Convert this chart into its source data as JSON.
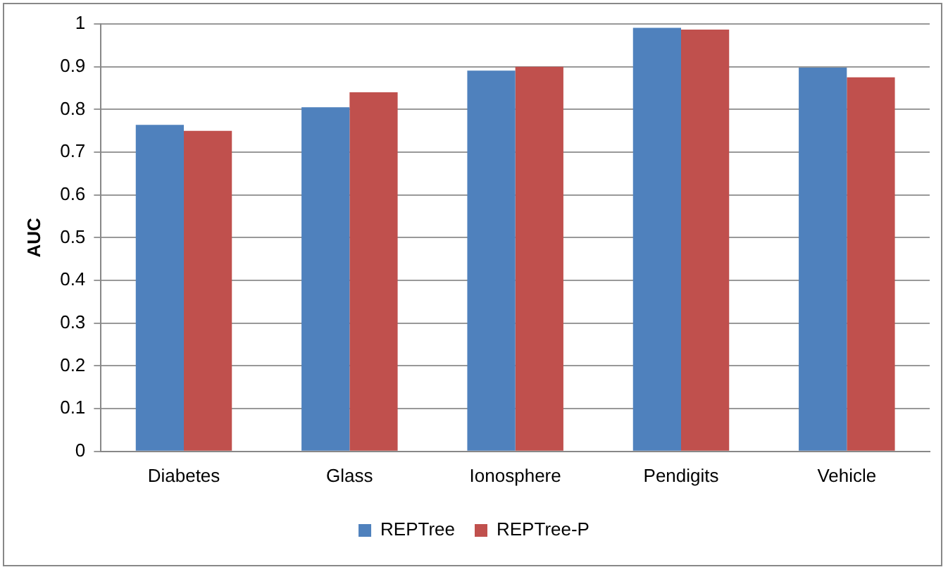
{
  "chart_data": {
    "type": "bar",
    "ylabel": "AUC",
    "categories": [
      "Diabetes",
      "Glass",
      "Ionosphere",
      "Pendigits",
      "Vehicle"
    ],
    "series": [
      {
        "name": "REPTree",
        "color": "#4f81bd",
        "values": [
          0.764,
          0.805,
          0.891,
          0.991,
          0.898
        ]
      },
      {
        "name": "REPTree-P",
        "color": "#c0504d",
        "values": [
          0.75,
          0.84,
          0.9,
          0.987,
          0.875
        ]
      }
    ],
    "ylim": [
      0,
      1
    ],
    "yticks": [
      0,
      0.1,
      0.2,
      0.3,
      0.4,
      0.5,
      0.6,
      0.7,
      0.8,
      0.9,
      1
    ],
    "grid": "y",
    "legend": "bottom"
  }
}
